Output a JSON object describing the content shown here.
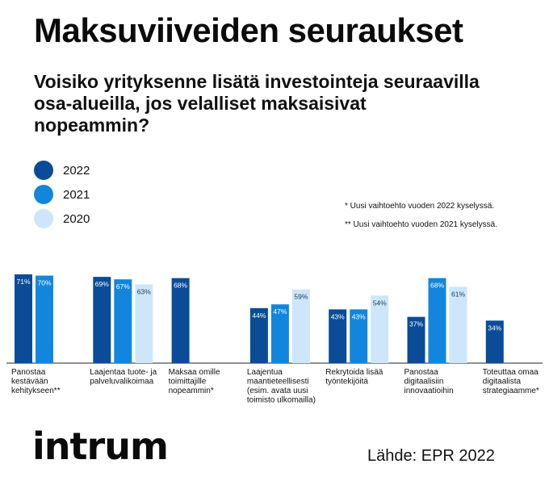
{
  "title": "Maksuviiveiden seuraukset",
  "subtitle": "Voisiko yrityksenne lisätä investointeja seuraavilla osa-alueilla, jos velalliset maksaisivat nopeammin?",
  "footnotes": [
    "* Uusi vaihtoehto vuoden 2022 kyselyssä.",
    "** Uusi vaihtoehto vuoden 2021 kyselyssä."
  ],
  "source": "Lähde: EPR 2022",
  "logo": "intrum",
  "chart_data": {
    "type": "bar",
    "title": "",
    "xlabel": "",
    "ylabel": "",
    "ylim": [
      0,
      75
    ],
    "legend_position": "top-left",
    "grid": false,
    "categories": [
      [
        "Panostaa",
        "kestävään",
        "kehitykseen**"
      ],
      [
        "Laajentaa tuote- ja",
        "palveluvalikoimaa"
      ],
      [
        "Maksaa omille",
        "toimittajille",
        "nopeammin*"
      ],
      [
        "Laajentua",
        "maantieteellisesti",
        "(esim. avata uusi",
        "toimisto ulkomailla)"
      ],
      [
        "Rekrytoida lisää",
        "työntekijöitä"
      ],
      [
        "Panostaa",
        "digitaalisiin",
        "innovaatioihin"
      ],
      [
        "Toteuttaa omaa",
        "digitaalista",
        "strategiaamme*"
      ]
    ],
    "series": [
      {
        "name": "2022",
        "color": "#0a4c97",
        "values": [
          71,
          69,
          68,
          44,
          43,
          37,
          34
        ]
      },
      {
        "name": "2021",
        "color": "#1286dc",
        "values": [
          70,
          67,
          null,
          47,
          43,
          68,
          null
        ]
      },
      {
        "name": "2020",
        "color": "#cde6f9",
        "values": [
          null,
          63,
          null,
          59,
          54,
          61,
          null
        ]
      }
    ],
    "value_suffix": "%"
  }
}
